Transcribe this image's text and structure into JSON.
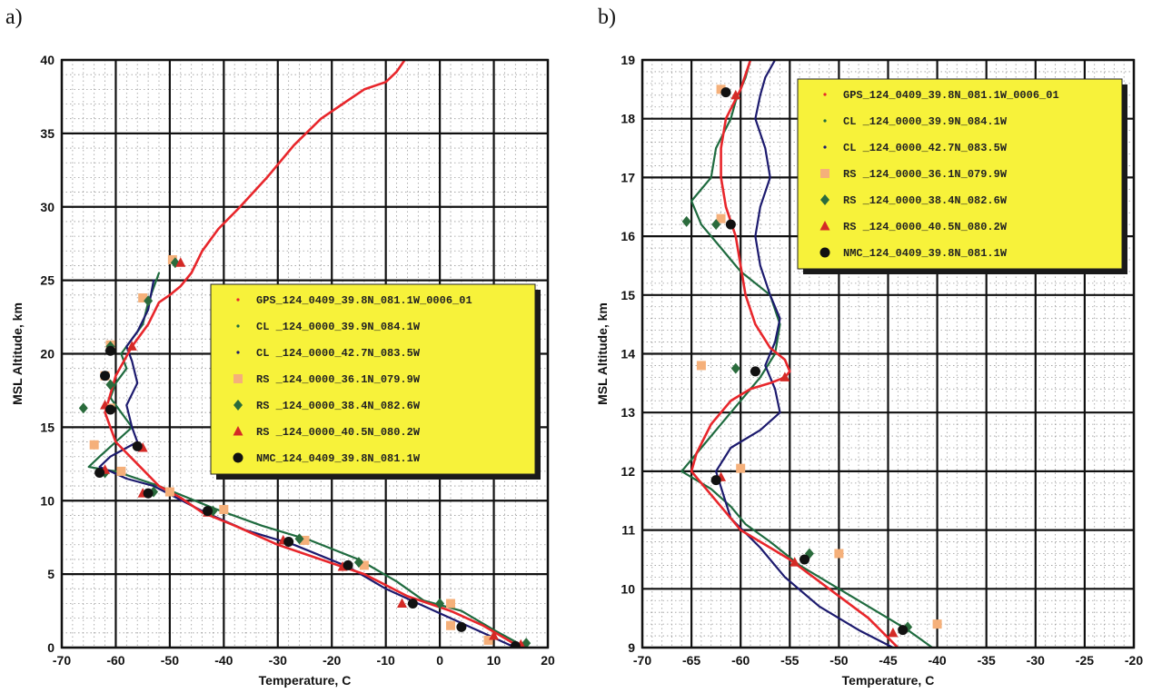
{
  "chart_data": [
    {
      "type": "line",
      "panel_label": "a)",
      "xlabel": "Temperature, C",
      "ylabel": "MSL Altitude, km",
      "xlim": [
        -70,
        20
      ],
      "ylim": [
        0,
        40
      ],
      "xticks": [
        -70,
        -60,
        -50,
        -40,
        -30,
        -20,
        -10,
        0,
        10,
        20
      ],
      "yticks": [
        0,
        5,
        10,
        15,
        20,
        25,
        30,
        35,
        40
      ],
      "grid": true,
      "legend_position": "center-right",
      "series": [
        {
          "name": "GPS_124_0409_39.8N_081.1W_0006_01",
          "color": "#e8262b",
          "style": "line",
          "x": [
            15,
            8,
            2,
            -6,
            -14,
            -22,
            -30,
            -38,
            -44,
            -48,
            -52,
            -56,
            -60,
            -62,
            -60,
            -57,
            -54,
            -52,
            -50,
            -48,
            -46,
            -44,
            -41,
            -37,
            -32,
            -27,
            -22,
            -18,
            -14,
            -10,
            -8,
            -6.5
          ],
          "y": [
            0,
            1.5,
            2.5,
            3.5,
            5,
            6,
            7,
            8.3,
            9.2,
            10.2,
            11,
            12.5,
            14,
            16,
            18.5,
            20.5,
            22,
            23.5,
            24,
            24.6,
            25.5,
            27,
            28.5,
            30,
            32,
            34.2,
            36,
            37,
            38,
            38.5,
            39.2,
            40
          ]
        },
        {
          "name": "CL _124_0000_39.9N_084.1W",
          "color": "#1f6b3f",
          "style": "line",
          "x": [
            16,
            10,
            4,
            -3,
            -8,
            -15,
            -24,
            -33,
            -42,
            -52,
            -56,
            -60,
            -62,
            -65,
            -63,
            -60,
            -57,
            -59,
            -61,
            -60,
            -58,
            -59,
            -57,
            -55,
            -54,
            -53,
            -52
          ],
          "y": [
            0,
            1.2,
            2.5,
            3.2,
            4.5,
            6,
            7.3,
            8.3,
            9.5,
            11,
            11.5,
            12,
            12.1,
            12.3,
            13,
            14,
            15,
            16,
            17,
            18,
            19,
            20,
            21,
            22,
            23.5,
            24.5,
            25.5
          ]
        },
        {
          "name": "CL _124_0000_42.7N_083.5W",
          "color": "#1c1a6e",
          "style": "line",
          "x": [
            14,
            8,
            2,
            -4,
            -10,
            -17,
            -27,
            -36,
            -44,
            -53,
            -58,
            -61,
            -63,
            -61,
            -58,
            -56,
            -57,
            -58,
            -56,
            -57,
            -58,
            -56,
            -54,
            -53
          ],
          "y": [
            0,
            1,
            2,
            3,
            4,
            5.5,
            7,
            8,
            9.3,
            11,
            11.5,
            12,
            12.3,
            13,
            13.6,
            14,
            15,
            16.5,
            18,
            19.5,
            20.5,
            21.5,
            23,
            25
          ]
        },
        {
          "name": "RS _124_0000_36.1N_079.9W",
          "color": "#f5b07a",
          "style": "square",
          "x": [
            9,
            2,
            2,
            -14,
            -25,
            -40,
            -50,
            -59,
            -64,
            -61,
            -62,
            -61,
            -55,
            -49.5
          ],
          "y": [
            0.5,
            1.5,
            3,
            5.6,
            7.3,
            9.4,
            10.6,
            12,
            13.8,
            16.3,
            18.5,
            20.6,
            23.8,
            26.4
          ]
        },
        {
          "name": "RS _124_0000_38.4N_082.6W",
          "color": "#2a6b3c",
          "style": "diamond",
          "x": [
            16,
            0,
            -15,
            -26,
            -42,
            -53,
            -62,
            -66,
            -61,
            -61,
            -54,
            -49
          ],
          "y": [
            0.3,
            3,
            5.8,
            7.4,
            9.3,
            10.6,
            11.9,
            16.3,
            17.9,
            20.5,
            23.6,
            26.2
          ]
        },
        {
          "name": "RS _124_0000_40.5N_080.2W",
          "color": "#d42a26",
          "style": "triangle",
          "x": [
            15,
            10,
            -7,
            -18,
            -29,
            -43,
            -55,
            -62,
            -55,
            -62,
            -57,
            -48
          ],
          "y": [
            0.2,
            0.8,
            3,
            5.5,
            7.3,
            9.2,
            10.5,
            12.1,
            13.6,
            16.5,
            20.5,
            26.2
          ]
        },
        {
          "name": "NMC_124_0409_39.8N_081.1W",
          "color": "#111111",
          "style": "circle",
          "x": [
            14,
            4,
            -5,
            -17,
            -28,
            -43,
            -54,
            -63,
            -56,
            -61,
            -62,
            -61
          ],
          "y": [
            0.1,
            1.4,
            3,
            5.6,
            7.2,
            9.3,
            10.5,
            11.9,
            13.7,
            16.2,
            18.5,
            20.2
          ]
        }
      ]
    },
    {
      "type": "line",
      "panel_label": "b)",
      "xlabel": "Temperature, C",
      "ylabel": "MSL Altitude, km",
      "xlim": [
        -70,
        -20
      ],
      "ylim": [
        9,
        19
      ],
      "xticks": [
        -70,
        -65,
        -60,
        -55,
        -50,
        -45,
        -40,
        -35,
        -30,
        -25,
        -20
      ],
      "yticks": [
        9,
        10,
        11,
        12,
        13,
        14,
        15,
        16,
        17,
        18,
        19
      ],
      "grid": true,
      "legend_position": "top-right",
      "series": [
        {
          "name": "GPS_124_0409_39.8N_081.1W_0006_01",
          "color": "#e8262b",
          "style": "line",
          "x": [
            -44,
            -47,
            -51,
            -55,
            -58,
            -60,
            -61.5,
            -63,
            -64.5,
            -65,
            -64.5,
            -63,
            -61,
            -59,
            -57,
            -55.5,
            -55,
            -55.5,
            -57,
            -58.5,
            -59.5,
            -60,
            -60.5,
            -61.5,
            -62,
            -62,
            -61.5,
            -60,
            -59
          ],
          "y": [
            9,
            9.5,
            10,
            10.5,
            10.8,
            11,
            11.3,
            11.6,
            11.9,
            12,
            12.3,
            12.8,
            13.2,
            13.4,
            13.5,
            13.6,
            13.7,
            13.9,
            14.1,
            14.5,
            15,
            15.5,
            16,
            16.5,
            17,
            17.5,
            18,
            18.5,
            19
          ]
        },
        {
          "name": "CL _124_0000_39.9N_084.1W",
          "color": "#1f6b3f",
          "style": "line",
          "x": [
            -40.5,
            -43,
            -46,
            -50,
            -54,
            -57,
            -59.5,
            -61,
            -63,
            -66,
            -64.5,
            -62,
            -60,
            -58,
            -56.5,
            -56,
            -57,
            -60,
            -62,
            -64,
            -65,
            -63,
            -62.5,
            -61,
            -60.5,
            -59.5,
            -59
          ],
          "y": [
            9,
            9.3,
            9.6,
            10,
            10.4,
            10.8,
            11.1,
            11.4,
            11.7,
            12,
            12.3,
            12.8,
            13.2,
            13.6,
            14,
            14.5,
            15,
            15.4,
            15.8,
            16.2,
            16.6,
            17,
            17.5,
            18,
            18.3,
            18.7,
            19
          ]
        },
        {
          "name": "CL _124_0000_42.7N_083.5W",
          "color": "#1c1a6e",
          "style": "line",
          "x": [
            -44.5,
            -48,
            -52,
            -55.5,
            -58,
            -61,
            -62.5,
            -61,
            -58,
            -56,
            -56.5,
            -57.5,
            -56.5,
            -56,
            -57,
            -58,
            -58.5,
            -58,
            -57,
            -57.5,
            -58.5,
            -58,
            -57.5,
            -56.5
          ],
          "y": [
            9,
            9.3,
            9.7,
            10.2,
            10.7,
            11.2,
            12,
            12.4,
            12.7,
            13,
            13.4,
            13.8,
            14.2,
            14.6,
            15,
            15.5,
            16,
            16.5,
            17,
            17.5,
            18,
            18.4,
            18.7,
            19
          ]
        },
        {
          "name": "RS _124_0000_36.1N_079.9W",
          "color": "#f5b07a",
          "style": "square",
          "x": [
            -40,
            -50,
            -60,
            -64,
            -62,
            -62
          ],
          "y": [
            9.4,
            10.6,
            12.05,
            13.8,
            16.3,
            18.5
          ]
        },
        {
          "name": "RS _124_0000_38.4N_082.6W",
          "color": "#2a6b3c",
          "style": "diamond",
          "x": [
            -43,
            -53,
            -65.5,
            -60.5,
            -62.5
          ],
          "y": [
            9.35,
            10.6,
            16.25,
            13.75,
            16.2
          ]
        },
        {
          "name": "RS _124_0000_40.5N_080.2W",
          "color": "#d42a26",
          "style": "triangle",
          "x": [
            -44.5,
            -54.5,
            -62,
            -55.5,
            -60.5
          ],
          "y": [
            9.25,
            10.45,
            11.9,
            13.6,
            18.4
          ]
        },
        {
          "name": "NMC_124_0409_39.8N_081.1W",
          "color": "#111111",
          "style": "circle",
          "x": [
            -43.5,
            -53.5,
            -62.5,
            -58.5,
            -61,
            -61.5
          ],
          "y": [
            9.3,
            10.5,
            11.85,
            13.7,
            16.2,
            18.45
          ]
        }
      ]
    }
  ]
}
